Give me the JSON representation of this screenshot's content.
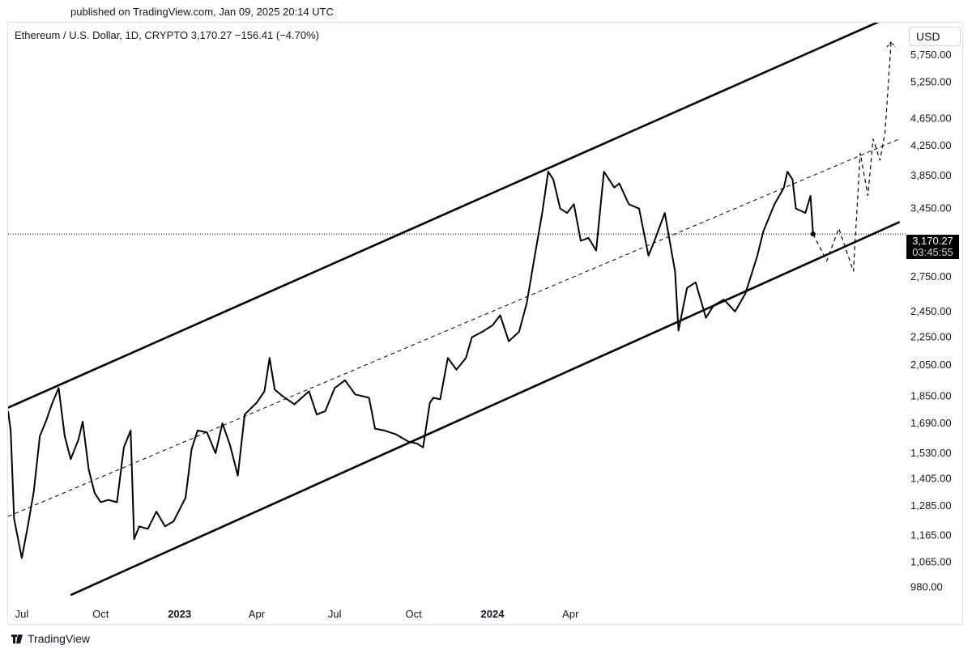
{
  "published": "published on TradingView.com, Jan 09, 2025 20:14 UTC",
  "symbol_line": "Ethereum / U.S. Dollar, 1D, CRYPTO  3,170.27  −156.41 (−4.70%)",
  "currency": "USD",
  "last_price": "3,170.27",
  "countdown": "03:45:55",
  "brand": "TradingView",
  "colors": {
    "line": "#000000",
    "background": "#ffffff",
    "axis_text": "#131722",
    "frame": "#e0e3eb"
  },
  "chart_data": {
    "type": "line",
    "y_scale": "log",
    "ylim": [
      930,
      6400
    ],
    "xlim": [
      "2022-06-15",
      "2025-04-25"
    ],
    "ytick_labels": [
      "5,750.00",
      "5,250.00",
      "4,650.00",
      "4,250.00",
      "3,850.00",
      "3,450.00",
      "2,750.00",
      "2,450.00",
      "2,250.00",
      "2,050.00",
      "1,850.00",
      "1,690.00",
      "1,530.00",
      "1,405.00",
      "1,285.00",
      "1,165.00",
      "1,065.00",
      "980.00"
    ],
    "yticks": [
      5750,
      5250,
      4650,
      4250,
      3850,
      3450,
      2750,
      2450,
      2250,
      2050,
      1850,
      1690,
      1530,
      1405,
      1285,
      1165,
      1065,
      980
    ],
    "xtick_labels": [
      "Jul",
      "Oct",
      "2023",
      "Apr",
      "Jul",
      "Oct",
      "2024",
      "Apr"
    ],
    "xticks": [
      "2022-07-01",
      "2022-10-01",
      "2023-01-01",
      "2023-04-01",
      "2023-07-01",
      "2023-10-01",
      "2024-01-01",
      "2024-04-01"
    ],
    "xtick_bold": [
      false,
      false,
      true,
      false,
      false,
      false,
      true,
      false
    ],
    "grid": false,
    "series": [
      {
        "x": [
          "2022-06-15",
          "2022-06-18",
          "2022-06-22",
          "2022-07-01",
          "2022-07-08",
          "2022-07-15",
          "2022-07-22",
          "2022-07-29",
          "2022-08-05",
          "2022-08-13",
          "2022-08-20",
          "2022-08-27",
          "2022-09-05",
          "2022-09-10",
          "2022-09-17",
          "2022-09-24",
          "2022-10-01",
          "2022-10-10",
          "2022-10-20",
          "2022-10-28",
          "2022-11-05",
          "2022-11-09",
          "2022-11-15",
          "2022-11-25",
          "2022-12-05",
          "2022-12-15",
          "2022-12-25",
          "2023-01-08",
          "2023-01-15",
          "2023-01-22",
          "2023-02-02",
          "2023-02-12",
          "2023-02-20",
          "2023-03-01",
          "2023-03-10",
          "2023-03-18",
          "2023-04-01",
          "2023-04-10",
          "2023-04-16",
          "2023-04-22",
          "2023-05-01",
          "2023-05-15",
          "2023-06-01",
          "2023-06-10",
          "2023-06-20",
          "2023-07-01",
          "2023-07-13",
          "2023-07-25",
          "2023-08-10",
          "2023-08-17",
          "2023-08-28",
          "2023-09-10",
          "2023-09-25",
          "2023-10-05",
          "2023-10-12",
          "2023-10-20",
          "2023-10-24",
          "2023-11-01",
          "2023-11-10",
          "2023-11-20",
          "2023-12-01",
          "2023-12-08",
          "2023-12-20",
          "2024-01-01",
          "2024-01-10",
          "2024-01-20",
          "2024-02-01",
          "2024-02-10",
          "2024-02-20",
          "2024-02-28",
          "2024-03-06",
          "2024-03-12",
          "2024-03-20",
          "2024-03-28",
          "2024-04-05",
          "2024-04-13",
          "2024-04-22",
          "2024-05-01",
          "2024-05-10",
          "2024-05-22",
          "2024-05-28",
          "2024-06-08",
          "2024-06-20",
          "2024-07-01",
          "2024-07-08",
          "2024-07-20",
          "2024-08-01",
          "2024-08-05",
          "2024-08-15",
          "2024-08-25",
          "2024-09-06",
          "2024-09-15",
          "2024-09-27",
          "2024-10-10",
          "2024-10-22",
          "2024-11-05",
          "2024-11-12",
          "2024-11-25",
          "2024-12-06",
          "2024-12-10",
          "2024-12-16",
          "2024-12-20",
          "2024-12-31",
          "2025-01-06",
          "2025-01-09"
        ],
        "values": [
          1760,
          1650,
          1230,
          1080,
          1200,
          1350,
          1620,
          1700,
          1800,
          1900,
          1620,
          1500,
          1600,
          1700,
          1450,
          1340,
          1300,
          1310,
          1300,
          1560,
          1650,
          1150,
          1200,
          1190,
          1260,
          1200,
          1220,
          1320,
          1550,
          1650,
          1640,
          1530,
          1690,
          1570,
          1420,
          1740,
          1810,
          1880,
          2100,
          1890,
          1850,
          1800,
          1880,
          1740,
          1760,
          1900,
          1950,
          1860,
          1840,
          1660,
          1650,
          1630,
          1590,
          1580,
          1560,
          1810,
          1840,
          1830,
          2100,
          2020,
          2100,
          2250,
          2290,
          2340,
          2420,
          2220,
          2290,
          2520,
          2980,
          3400,
          3900,
          3800,
          3450,
          3400,
          3500,
          3100,
          3130,
          3000,
          3900,
          3700,
          3750,
          3500,
          3450,
          2950,
          3100,
          3400,
          2800,
          2300,
          2650,
          2700,
          2400,
          2500,
          2550,
          2450,
          2600,
          2950,
          3200,
          3500,
          3700,
          3900,
          3800,
          3450,
          3400,
          3600,
          3170
        ]
      }
    ],
    "projection": {
      "x": [
        "2025-01-09",
        "2025-01-25",
        "2025-02-08",
        "2025-02-25",
        "2025-03-05",
        "2025-03-14",
        "2025-03-20",
        "2025-03-28",
        "2025-04-03",
        "2025-04-10"
      ],
      "values": [
        3170,
        2900,
        3230,
        2800,
        4150,
        3600,
        4350,
        4050,
        4450,
        6000
      ]
    },
    "channel": {
      "upper": {
        "x": [
          "2022-06-15",
          "2025-04-20"
        ],
        "values": [
          1780,
          6620
        ]
      },
      "lower": {
        "x": [
          "2022-08-27",
          "2025-04-20"
        ],
        "values": [
          955,
          3300
        ]
      },
      "mid": {
        "x": [
          "2022-06-15",
          "2025-04-20"
        ],
        "values": [
          1240,
          4350
        ]
      }
    }
  }
}
